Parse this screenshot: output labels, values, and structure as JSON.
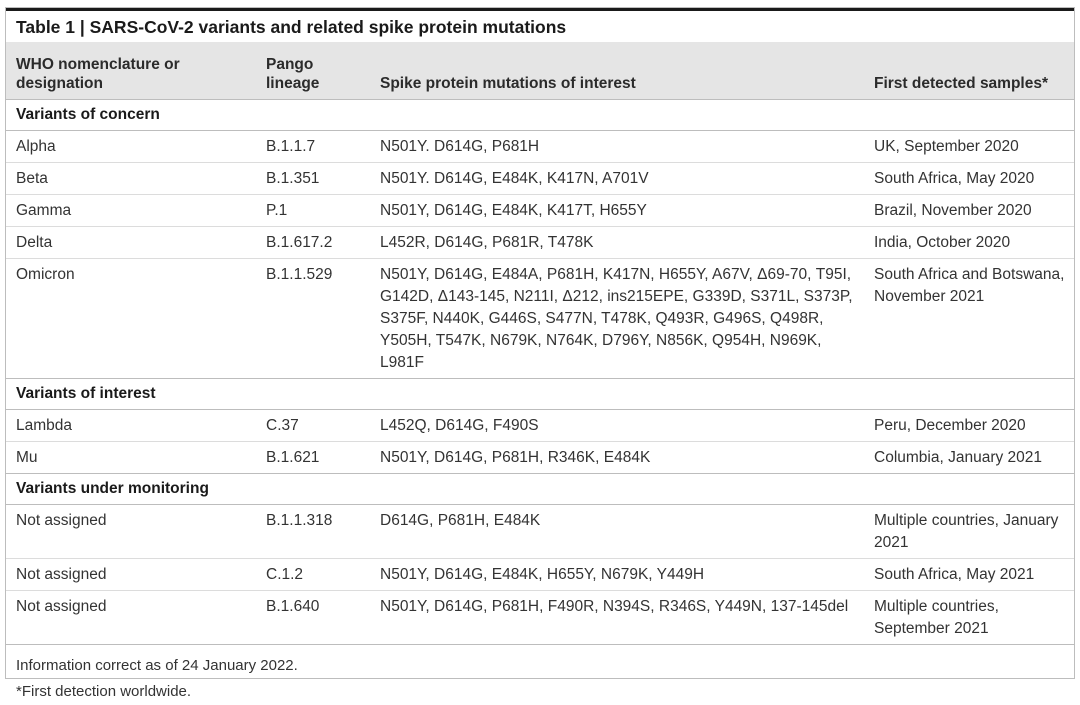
{
  "title": "Table 1 | SARS-CoV-2 variants and related spike protein mutations",
  "headers": [
    "WHO nomenclature or designation",
    "Pango lineage",
    "Spike protein mutations of interest",
    "First detected samples*"
  ],
  "groups": [
    {
      "label": "Variants of concern",
      "rows": [
        {
          "name": "Alpha",
          "lineage": "B.1.1.7",
          "mutations": "N501Y. D614G, P681H",
          "first": "UK, September 2020"
        },
        {
          "name": "Beta",
          "lineage": "B.1.351",
          "mutations": "N501Y. D614G, E484K, K417N, A701V",
          "first": "South Africa, May 2020"
        },
        {
          "name": "Gamma",
          "lineage": "P.1",
          "mutations": "N501Y, D614G, E484K, K417T, H655Y",
          "first": "Brazil, November 2020"
        },
        {
          "name": "Delta",
          "lineage": "B.1.617.2",
          "mutations": "L452R, D614G, P681R, T478K",
          "first": "India, October 2020"
        },
        {
          "name": "Omicron",
          "lineage": "B.1.1.529",
          "mutations": "N501Y, D614G, E484A, P681H, K417N, H655Y, A67V, Δ69-70, T95I, G142D, Δ143-145, N211I, Δ212, ins215EPE, G339D, S371L, S373P, S375F, N440K, G446S, S477N, T478K, Q493R, G496S, Q498R, Y505H, T547K, N679K, N764K, D796Y, N856K, Q954H, N969K, L981F",
          "first": "South Africa and Botswana, November 2021"
        }
      ]
    },
    {
      "label": "Variants of interest",
      "rows": [
        {
          "name": "Lambda",
          "lineage": "C.37",
          "mutations": "L452Q, D614G, F490S",
          "first": "Peru, December 2020"
        },
        {
          "name": "Mu",
          "lineage": "B.1.621",
          "mutations": "N501Y, D614G, P681H, R346K, E484K",
          "first": "Columbia, January 2021"
        }
      ]
    },
    {
      "label": "Variants under monitoring",
      "rows": [
        {
          "name": "Not assigned",
          "lineage": "B.1.1.318",
          "mutations": "D614G, P681H, E484K",
          "first": "Multiple countries, January 2021"
        },
        {
          "name": "Not assigned",
          "lineage": "C.1.2",
          "mutations": "N501Y, D614G, E484K, H655Y, N679K, Y449H",
          "first": "South Africa, May 2021"
        },
        {
          "name": "Not assigned",
          "lineage": "B.1.640",
          "mutations": "N501Y, D614G, P681H, F490R, N394S, R346S, Y449N, 137-145del",
          "first": "Multiple countries, September 2021"
        }
      ]
    }
  ],
  "footnotes": [
    "Information correct as of 24 January 2022.",
    "*First detection worldwide."
  ]
}
